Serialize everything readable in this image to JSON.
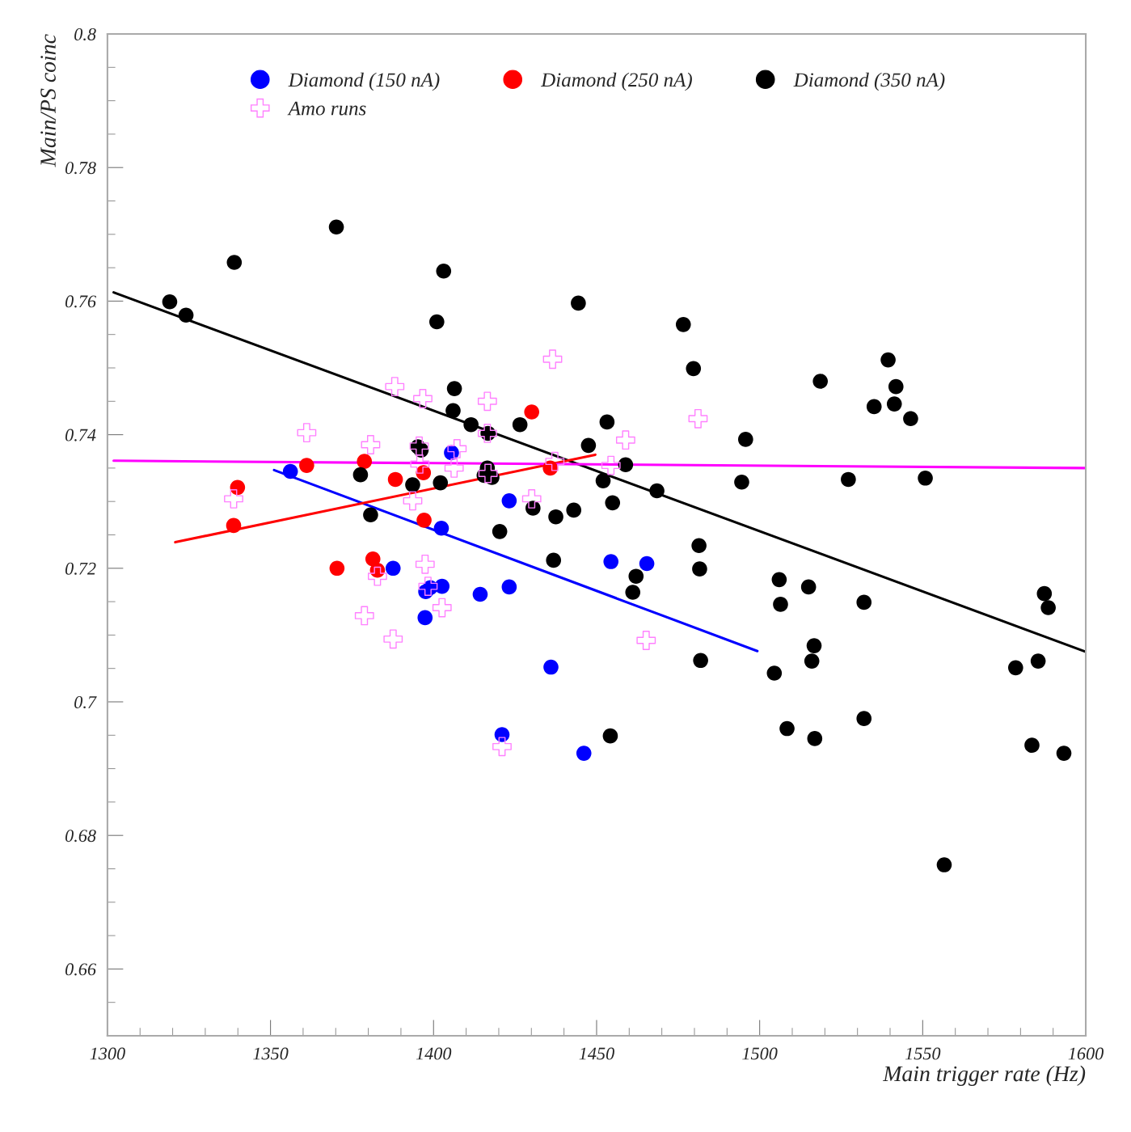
{
  "chart_data": {
    "type": "scatter",
    "xlabel": "Main trigger rate (Hz)",
    "ylabel": "Main/PS coinc",
    "xlim": [
      1300,
      1600
    ],
    "ylim": [
      0.65,
      0.8
    ],
    "xticks": [
      1300,
      1350,
      1400,
      1450,
      1500,
      1550,
      1600
    ],
    "yticks": [
      0.66,
      0.68,
      0.7,
      0.72,
      0.74,
      0.76,
      0.78,
      0.8
    ],
    "legend": "top",
    "series": [
      {
        "name": "Diamond (150 nA)",
        "color": "#0000ff",
        "marker": "circle",
        "x": [
          1356.1,
          1387.6,
          1405.5,
          1402.4,
          1397.6,
          1399.0,
          1402.6,
          1397.4,
          1414.3,
          1423.2,
          1423.2,
          1436.0,
          1421.0,
          1446.1,
          1454.4,
          1465.4
        ],
        "values": [
          0.7345,
          0.72,
          0.7373,
          0.726,
          0.7165,
          0.7171,
          0.7173,
          0.7126,
          0.7161,
          0.7301,
          0.7172,
          0.7052,
          0.6951,
          0.6923,
          0.721,
          0.7207
        ]
      },
      {
        "name": "Diamond (250 nA)",
        "color": "#ff0000",
        "marker": "circle",
        "x": [
          1339.9,
          1338.7,
          1361.1,
          1378.8,
          1370.4,
          1381.4,
          1382.8,
          1388.3,
          1396.9,
          1397.1,
          1430.1,
          1435.8
        ],
        "values": [
          0.7321,
          0.7264,
          0.7354,
          0.736,
          0.72,
          0.7214,
          0.7197,
          0.7333,
          0.7343,
          0.7272,
          0.7434,
          0.735
        ]
      },
      {
        "name": "Diamond (350 nA)",
        "color": "#000000",
        "marker": "circle",
        "x": [
          1319.1,
          1324.1,
          1338.9,
          1370.2,
          1403.1,
          1401.0,
          1444.4,
          1476.6,
          1479.7,
          1518.6,
          1539.4,
          1541.8,
          1535.1,
          1541.3,
          1546.3,
          1406.4,
          1406.0,
          1411.5,
          1426.5,
          1416.7,
          1395.2,
          1396.2,
          1453.2,
          1447.5,
          1495.7,
          1377.6,
          1393.6,
          1402.1,
          1416.5,
          1415.5,
          1417.9,
          1452.0,
          1458.9,
          1468.5,
          1494.5,
          1527.2,
          1550.8,
          1454.9,
          1430.5,
          1437.5,
          1443.0,
          1380.7,
          1420.3,
          1436.8,
          1481.4,
          1481.6,
          1462.1,
          1461.1,
          1506.0,
          1506.4,
          1515.0,
          1532.0,
          1516.7,
          1516.0,
          1481.9,
          1504.5,
          1508.4,
          1516.9,
          1532.0,
          1454.2,
          1556.6,
          1578.5,
          1585.4,
          1587.3,
          1588.5,
          1583.5,
          1593.3
        ],
        "values": [
          0.7599,
          0.7579,
          0.7658,
          0.7711,
          0.7645,
          0.7569,
          0.7597,
          0.7565,
          0.7499,
          0.748,
          0.7512,
          0.7472,
          0.7442,
          0.7446,
          0.7424,
          0.7469,
          0.7436,
          0.7415,
          0.7415,
          0.7402,
          0.7382,
          0.7377,
          0.7419,
          0.7384,
          0.7393,
          0.734,
          0.7325,
          0.7328,
          0.735,
          0.7339,
          0.7336,
          0.7331,
          0.7355,
          0.7316,
          0.7329,
          0.7333,
          0.7335,
          0.7298,
          0.729,
          0.7277,
          0.7287,
          0.728,
          0.7255,
          0.7212,
          0.7234,
          0.7199,
          0.7188,
          0.7164,
          0.7183,
          0.7146,
          0.7172,
          0.7149,
          0.7084,
          0.7061,
          0.7062,
          0.7043,
          0.696,
          0.6945,
          0.6975,
          0.6949,
          0.6756,
          0.7051,
          0.7061,
          0.7162,
          0.7141,
          0.6935,
          0.6923
        ]
      },
      {
        "name": "Amo runs",
        "color": "#ff80ff",
        "marker": "cross",
        "x": [
          1361.1,
          1388.1,
          1396.7,
          1380.7,
          1416.5,
          1416.5,
          1436.5,
          1481.1,
          1458.9,
          1407.2,
          1395.6,
          1406.3,
          1395.8,
          1338.7,
          1393.6,
          1430.1,
          1416.7,
          1454.4,
          1437.2,
          1397.4,
          1382.8,
          1398.3,
          1402.6,
          1378.8,
          1387.6,
          1465.2,
          1421.0
        ],
        "values": [
          0.7403,
          0.7472,
          0.7454,
          0.7385,
          0.745,
          0.7402,
          0.7513,
          0.7424,
          0.7392,
          0.7379,
          0.7383,
          0.735,
          0.7356,
          0.7304,
          0.7301,
          0.7304,
          0.7342,
          0.7354,
          0.736,
          0.7206,
          0.7188,
          0.7173,
          0.7141,
          0.7129,
          0.7094,
          0.7092,
          0.6933
        ]
      },
      {
        "type": "line",
        "color": "#000000",
        "x": [
          1301.9,
          1600
        ],
        "values": [
          0.7613,
          0.7075
        ]
      },
      {
        "type": "line",
        "color": "#0000ff",
        "x": [
          1351.1,
          1499.3
        ],
        "values": [
          0.7347,
          0.7076
        ]
      },
      {
        "type": "line",
        "color": "#ff0000",
        "x": [
          1320.8,
          1449.6
        ],
        "values": [
          0.7239,
          0.737
        ]
      },
      {
        "type": "line",
        "color": "#ff00ff",
        "x": [
          1301.9,
          1600
        ],
        "values": [
          0.7361,
          0.735
        ]
      }
    ]
  }
}
